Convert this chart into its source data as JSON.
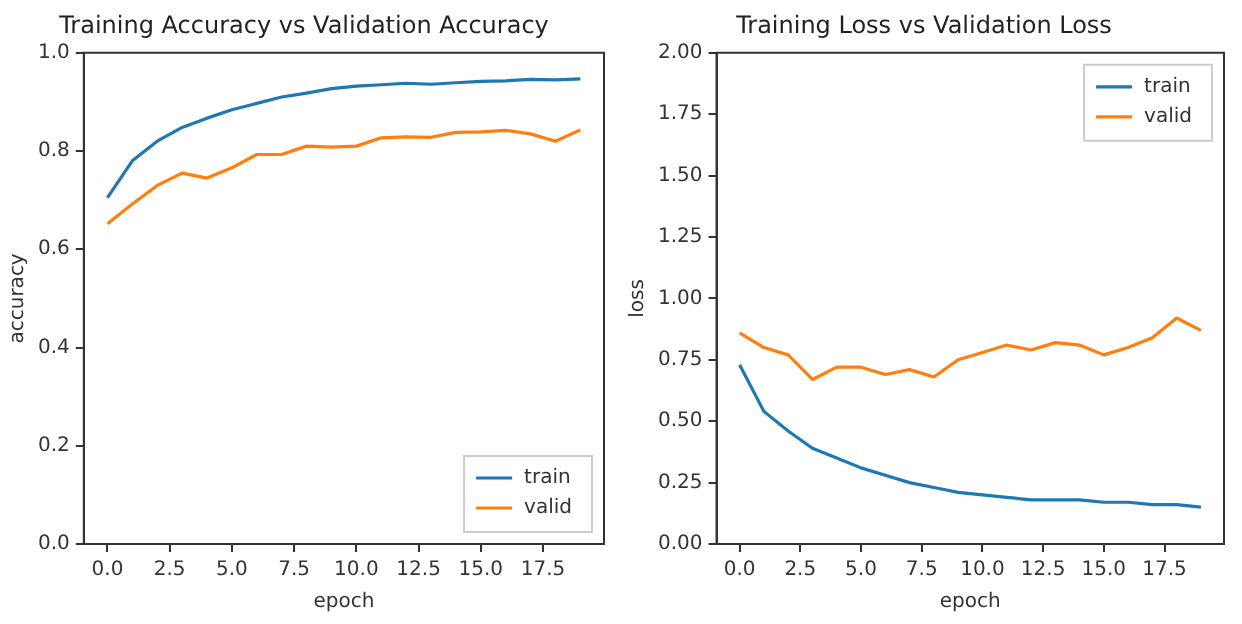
{
  "chart_data": [
    {
      "type": "line",
      "title": "Training Accuracy vs Validation Accuracy",
      "xlabel": "epoch",
      "ylabel": "accuracy",
      "x": [
        0,
        1,
        2,
        3,
        4,
        5,
        6,
        7,
        8,
        9,
        10,
        11,
        12,
        13,
        14,
        15,
        16,
        17,
        18,
        19
      ],
      "series": [
        {
          "name": "train",
          "color": "#1f77b4",
          "values": [
            0.705,
            0.78,
            0.82,
            0.848,
            0.867,
            0.884,
            0.897,
            0.91,
            0.918,
            0.927,
            0.932,
            0.935,
            0.938,
            0.936,
            0.939,
            0.942,
            0.943,
            0.946,
            0.945,
            0.947
          ]
        },
        {
          "name": "valid",
          "color": "#ff7f0e",
          "values": [
            0.652,
            0.692,
            0.73,
            0.755,
            0.745,
            0.766,
            0.793,
            0.793,
            0.81,
            0.808,
            0.81,
            0.827,
            0.829,
            0.828,
            0.838,
            0.839,
            0.842,
            0.835,
            0.82,
            0.843
          ]
        }
      ],
      "xlim": [
        -0.95,
        19.95
      ],
      "ylim": [
        0,
        1
      ],
      "xticks": [
        {
          "value": 0,
          "label": "0.0"
        },
        {
          "value": 2.5,
          "label": "2.5"
        },
        {
          "value": 5,
          "label": "5.0"
        },
        {
          "value": 7.5,
          "label": "7.5"
        },
        {
          "value": 10,
          "label": "10.0"
        },
        {
          "value": 12.5,
          "label": "12.5"
        },
        {
          "value": 15,
          "label": "15.0"
        },
        {
          "value": 17.5,
          "label": "17.5"
        }
      ],
      "yticks": [
        {
          "value": 0,
          "label": "0.0"
        },
        {
          "value": 0.2,
          "label": "0.2"
        },
        {
          "value": 0.4,
          "label": "0.4"
        },
        {
          "value": 0.6,
          "label": "0.6"
        },
        {
          "value": 0.8,
          "label": "0.8"
        },
        {
          "value": 1,
          "label": "1.0"
        }
      ],
      "legend": "bottom right",
      "grid": false,
      "marker": "none",
      "line_style": "solid"
    },
    {
      "type": "line",
      "title": "Training Loss vs Validation Loss",
      "xlabel": "epoch",
      "ylabel": "loss",
      "x": [
        0,
        1,
        2,
        3,
        4,
        5,
        6,
        7,
        8,
        9,
        10,
        11,
        12,
        13,
        14,
        15,
        16,
        17,
        18,
        19
      ],
      "series": [
        {
          "name": "train",
          "color": "#1f77b4",
          "values": [
            0.73,
            0.54,
            0.46,
            0.39,
            0.35,
            0.31,
            0.28,
            0.25,
            0.23,
            0.21,
            0.2,
            0.19,
            0.18,
            0.18,
            0.18,
            0.17,
            0.17,
            0.16,
            0.16,
            0.15
          ]
        },
        {
          "name": "valid",
          "color": "#ff7f0e",
          "values": [
            0.86,
            0.8,
            0.77,
            0.67,
            0.72,
            0.72,
            0.69,
            0.71,
            0.68,
            0.75,
            0.78,
            0.81,
            0.79,
            0.82,
            0.81,
            0.77,
            0.8,
            0.84,
            0.92,
            0.87
          ]
        }
      ],
      "xlim": [
        -0.95,
        19.95
      ],
      "ylim": [
        0,
        2
      ],
      "xticks": [
        {
          "value": 0,
          "label": "0.0"
        },
        {
          "value": 2.5,
          "label": "2.5"
        },
        {
          "value": 5,
          "label": "5.0"
        },
        {
          "value": 7.5,
          "label": "7.5"
        },
        {
          "value": 10,
          "label": "10.0"
        },
        {
          "value": 12.5,
          "label": "12.5"
        },
        {
          "value": 15,
          "label": "15.0"
        },
        {
          "value": 17.5,
          "label": "17.5"
        }
      ],
      "yticks": [
        {
          "value": 0,
          "label": "0.00"
        },
        {
          "value": 0.25,
          "label": "0.25"
        },
        {
          "value": 0.5,
          "label": "0.50"
        },
        {
          "value": 0.75,
          "label": "0.75"
        },
        {
          "value": 1,
          "label": "1.00"
        },
        {
          "value": 1.25,
          "label": "1.25"
        },
        {
          "value": 1.5,
          "label": "1.50"
        },
        {
          "value": 1.75,
          "label": "1.75"
        },
        {
          "value": 2,
          "label": "2.00"
        }
      ],
      "legend": "top right",
      "grid": false,
      "marker": "none",
      "line_style": "solid"
    }
  ]
}
